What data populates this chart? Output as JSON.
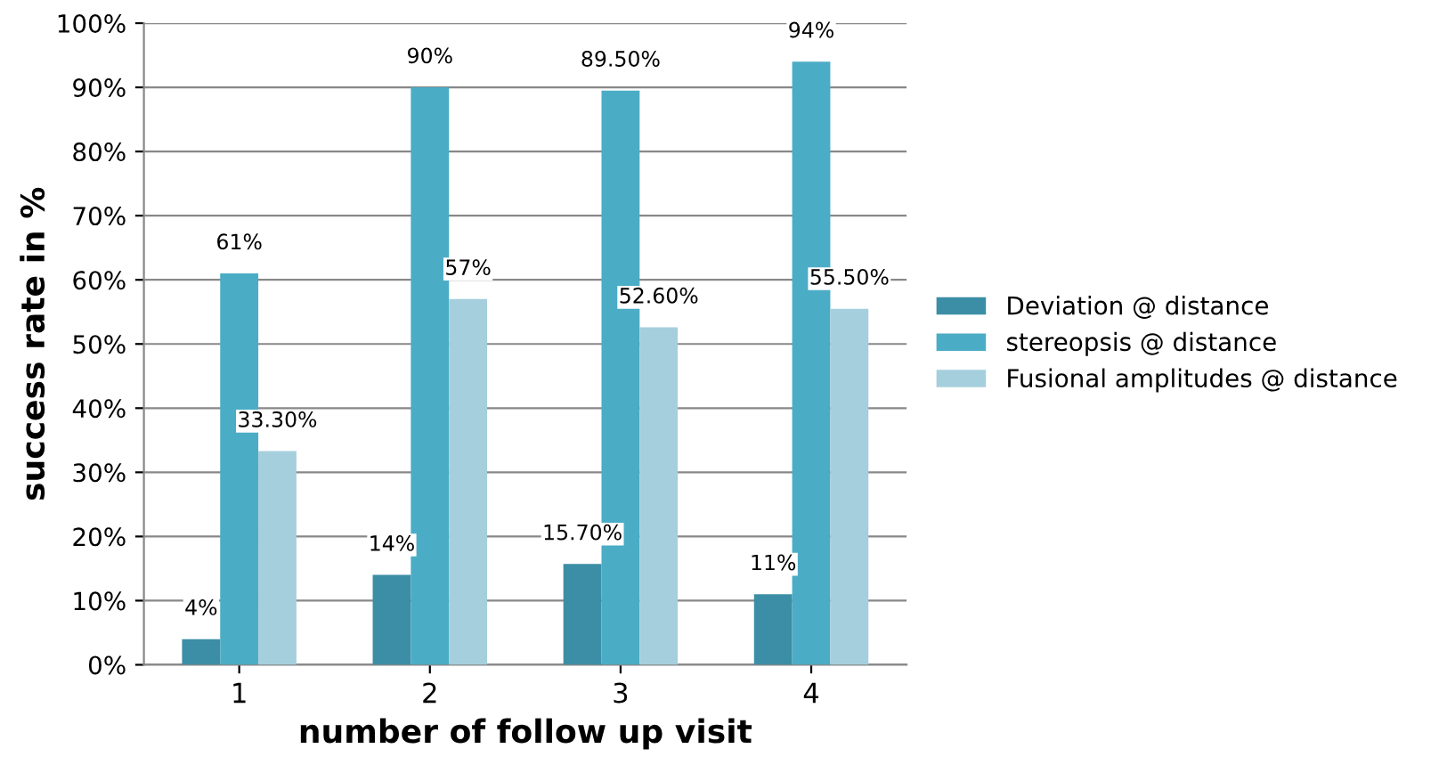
{
  "chart_data": {
    "type": "bar",
    "xlabel": "number of follow up visit",
    "ylabel": "success rate in %",
    "categories": [
      "1",
      "2",
      "3",
      "4"
    ],
    "series": [
      {
        "name": "Deviation @ distance",
        "color": "#3b8ea5",
        "values": [
          4,
          14,
          15.7,
          11
        ],
        "value_labels": [
          "4%",
          "14%",
          "15.70%",
          "11%"
        ]
      },
      {
        "name": "stereopsis @ distance",
        "color": "#4bacc6",
        "values": [
          61,
          90,
          89.5,
          94
        ],
        "value_labels": [
          "61%",
          "90%",
          "89.50%",
          "94%"
        ]
      },
      {
        "name": "Fusional amplitudes @ distance",
        "color": "#a5cfdc",
        "values": [
          33.3,
          57,
          52.6,
          55.5
        ],
        "value_labels": [
          "33.30%",
          "57%",
          "52.60%",
          "55.50%"
        ]
      }
    ],
    "ylim": [
      0,
      100
    ],
    "yticks": [
      {
        "value": 0,
        "label": "0%"
      },
      {
        "value": 10,
        "label": "10%"
      },
      {
        "value": 20,
        "label": "20%"
      },
      {
        "value": 30,
        "label": "30%"
      },
      {
        "value": 40,
        "label": "40%"
      },
      {
        "value": 50,
        "label": "50%"
      },
      {
        "value": 60,
        "label": "60%"
      },
      {
        "value": 70,
        "label": "70%"
      },
      {
        "value": 80,
        "label": "80%"
      },
      {
        "value": 90,
        "label": "90%"
      },
      {
        "value": 100,
        "label": "100%"
      }
    ],
    "grid": "y",
    "legend": "right"
  }
}
